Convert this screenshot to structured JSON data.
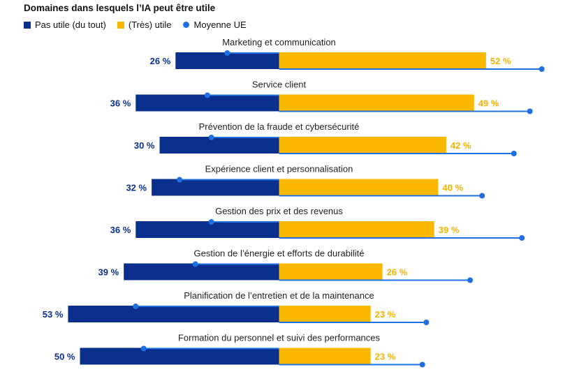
{
  "chart_data": {
    "type": "bar",
    "title": "Domaines dans lesquels l’IA peut être utile",
    "legend": [
      {
        "name": "Pas utile (du tout)",
        "color": "#0a2f8c",
        "kind": "square"
      },
      {
        "name": "(Très) utile",
        "color": "#fbb800",
        "kind": "square"
      },
      {
        "name": "Moyenne UE",
        "color": "#1f6fe0",
        "kind": "dot"
      }
    ],
    "categories": [
      "Marketing et communication",
      "Service client",
      "Prévention de la fraude et cybersécurité",
      "Expérience client et personnalisation",
      "Gestion des prix et des revenus",
      "Gestion de l’énergie et efforts de durabilité",
      "Planification de l’entretien et de la maintenance",
      "Formation du personnel et suivi des performances"
    ],
    "series": [
      {
        "name": "Pas utile (du tout)",
        "values": [
          26,
          36,
          30,
          32,
          36,
          39,
          53,
          50
        ],
        "labels": [
          "26 %",
          "36 %",
          "30 %",
          "32 %",
          "36 %",
          "39 %",
          "53 %",
          "50 %"
        ]
      },
      {
        "name": "(Très) utile",
        "values": [
          52,
          49,
          42,
          40,
          39,
          26,
          23,
          23
        ],
        "labels": [
          "52 %",
          "49 %",
          "42 %",
          "40 %",
          "39 %",
          "26 %",
          "23 %",
          "23 %"
        ]
      },
      {
        "name": "Moyenne UE – Pas utile",
        "values": [
          13,
          18,
          17,
          25,
          17,
          21,
          36,
          34
        ]
      },
      {
        "name": "Moyenne UE – Utile",
        "values": [
          66,
          63,
          59,
          51,
          61,
          48,
          37,
          36
        ]
      }
    ]
  }
}
